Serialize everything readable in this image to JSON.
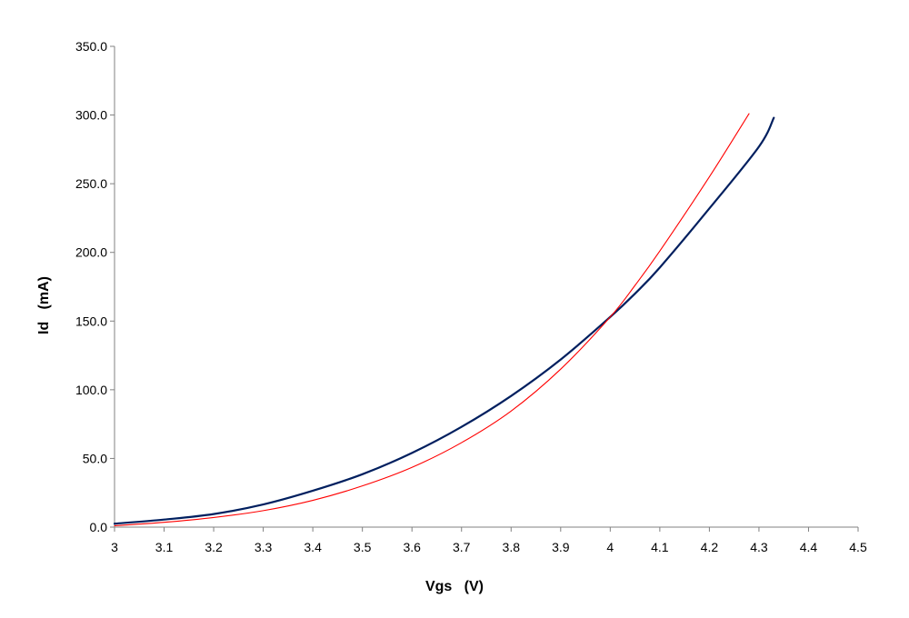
{
  "chart_data": {
    "type": "line",
    "title": "",
    "xlabel": "Vgs   (V)",
    "ylabel": "Id   (mA)",
    "xlim": [
      3,
      4.5
    ],
    "ylim": [
      0,
      350
    ],
    "x_ticks": [
      "3",
      "3.1",
      "3.2",
      "3.3",
      "3.4",
      "3.5",
      "3.6",
      "3.7",
      "3.8",
      "3.9",
      "4",
      "4.1",
      "4.2",
      "4.3",
      "4.4",
      "4.5"
    ],
    "y_ticks": [
      "0.0",
      "50.0",
      "100.0",
      "150.0",
      "200.0",
      "250.0",
      "300.0",
      "350.0"
    ],
    "grid": false,
    "legend": false,
    "series": [
      {
        "color": "#001f5f",
        "x": [
          3.0,
          3.1,
          3.2,
          3.3,
          3.4,
          3.5,
          3.6,
          3.7,
          3.8,
          3.9,
          4.0,
          4.05,
          4.1,
          4.2,
          4.3,
          4.33
        ],
        "y": [
          2.5,
          5.5,
          9.5,
          16.5,
          26.5,
          38.5,
          54,
          73,
          95.5,
          122,
          153,
          170,
          189,
          232,
          277,
          298
        ]
      },
      {
        "color": "#ff0000",
        "x": [
          3.0,
          3.1,
          3.2,
          3.3,
          3.4,
          3.5,
          3.6,
          3.7,
          3.8,
          3.9,
          4.0,
          4.05,
          4.1,
          4.2,
          4.28
        ],
        "y": [
          1,
          3.5,
          7,
          12,
          19.5,
          30,
          43.5,
          61.5,
          84.5,
          115,
          153,
          176,
          201,
          255,
          301
        ]
      }
    ]
  }
}
